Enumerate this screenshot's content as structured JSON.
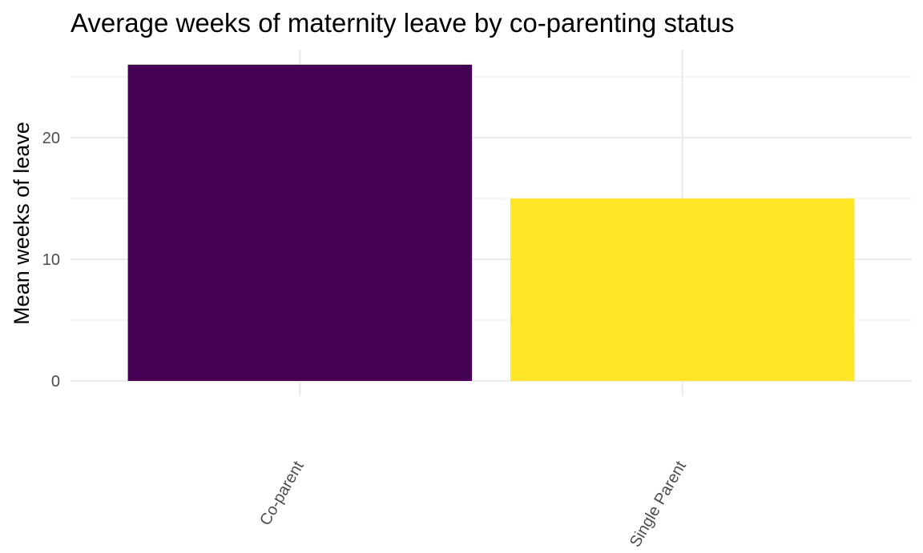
{
  "chart_data": {
    "type": "bar",
    "title": "Average weeks of maternity leave by co-parenting status",
    "xlabel": "",
    "ylabel": "Mean weeks of leave",
    "categories": [
      "Co-parent",
      "Single Parent"
    ],
    "values": [
      26,
      15
    ],
    "colors": [
      "#440154",
      "#FDE725"
    ],
    "ylim": [
      0,
      26
    ],
    "yticks": [
      0,
      10,
      20
    ],
    "yticks_minor": [
      5,
      15,
      25
    ],
    "grid": true,
    "legend": "none"
  }
}
